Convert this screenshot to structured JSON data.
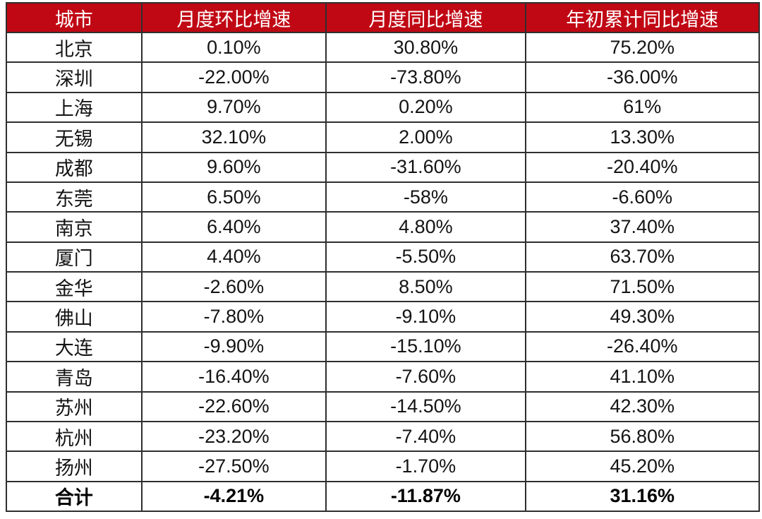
{
  "colors": {
    "header_bg": "#c00814",
    "header_text": "#ffffff",
    "grid_line": "#2f2f2f",
    "body_text": "#141414",
    "page_bg": "#ffffff"
  },
  "chart_data": {
    "type": "table",
    "columns": [
      "城市",
      "月度环比增速",
      "月度同比增速",
      "年初累计同比增速"
    ],
    "rows": [
      [
        "北京",
        "0.10%",
        "30.80%",
        "75.20%"
      ],
      [
        "深圳",
        "-22.00%",
        "-73.80%",
        "-36.00%"
      ],
      [
        "上海",
        "9.70%",
        "0.20%",
        "61%"
      ],
      [
        "无锡",
        "32.10%",
        "2.00%",
        "13.30%"
      ],
      [
        "成都",
        "9.60%",
        "-31.60%",
        "-20.40%"
      ],
      [
        "东莞",
        "6.50%",
        "-58%",
        "-6.60%"
      ],
      [
        "南京",
        "6.40%",
        "4.80%",
        "37.40%"
      ],
      [
        "厦门",
        "4.40%",
        "-5.50%",
        "63.70%"
      ],
      [
        "金华",
        "-2.60%",
        "8.50%",
        "71.50%"
      ],
      [
        "佛山",
        "-7.80%",
        "-9.10%",
        "49.30%"
      ],
      [
        "大连",
        "-9.90%",
        "-15.10%",
        "-26.40%"
      ],
      [
        "青岛",
        "-16.40%",
        "-7.60%",
        "41.10%"
      ],
      [
        "苏州",
        "-22.60%",
        "-14.50%",
        "42.30%"
      ],
      [
        "杭州",
        "-23.20%",
        "-7.40%",
        "56.80%"
      ],
      [
        "扬州",
        "-27.50%",
        "-1.70%",
        "45.20%"
      ]
    ],
    "total_row": [
      "合计",
      "-4.21%",
      "-11.87%",
      "31.16%"
    ]
  }
}
